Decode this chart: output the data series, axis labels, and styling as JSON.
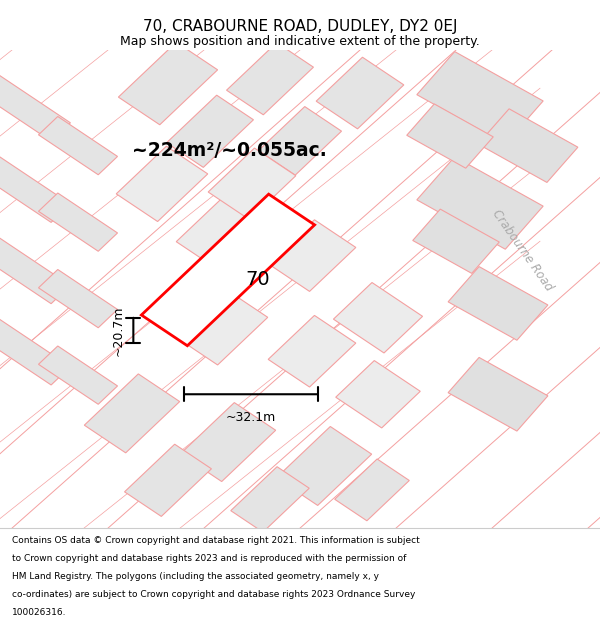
{
  "title": "70, CRABOURNE ROAD, DUDLEY, DY2 0EJ",
  "subtitle": "Map shows position and indicative extent of the property.",
  "title_fontsize": 11,
  "subtitle_fontsize": 9,
  "footer_lines": [
    "Contains OS data © Crown copyright and database right 2021. This information is subject",
    "to Crown copyright and database rights 2023 and is reproduced with the permission of",
    "HM Land Registry. The polygons (including the associated geometry, namely x, y",
    "co-ordinates) are subject to Crown copyright and database rights 2023 Ordnance Survey",
    "100026316."
  ],
  "area_label": "~224m²/~0.055ac.",
  "width_label": "~32.1m",
  "height_label": "~20.7m",
  "plot_number": "70",
  "bg_color": "#ffffff",
  "map_bg": "#f7f7f7",
  "plot_color": "#ff0000",
  "plot_fill": "#ffffff",
  "road_label": "Crabourne Road",
  "line_color_pink": "#f4a0a0",
  "parcel_color": "#e4e4e4",
  "parcel_edge": "#f4a0a0"
}
